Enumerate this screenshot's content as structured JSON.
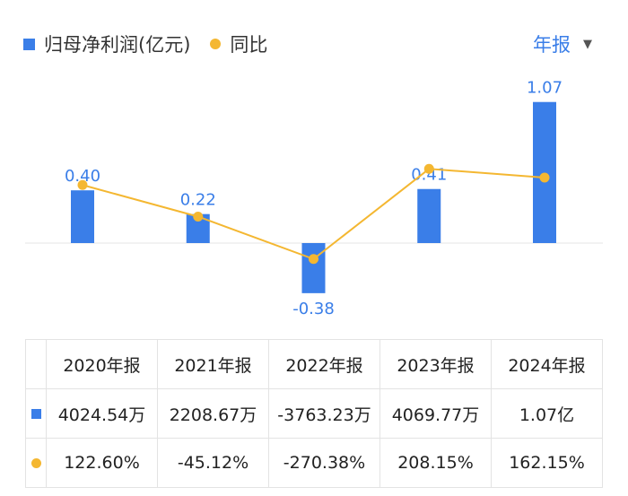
{
  "legend": {
    "bar_label": "归母净利润(亿元)",
    "line_label": "同比"
  },
  "period_selector": {
    "label": "年报",
    "caret": "▼"
  },
  "chart_data": {
    "type": "bar",
    "categories": [
      "2020年报",
      "2021年报",
      "2022年报",
      "2023年报",
      "2024年报"
    ],
    "series": [
      {
        "name": "归母净利润(亿元)",
        "type": "bar",
        "values": [
          0.4,
          0.22,
          -0.38,
          0.41,
          1.07
        ],
        "labels": [
          "0.40",
          "0.22",
          "-0.38",
          "0.41",
          "1.07"
        ],
        "color": "#3a7ee8"
      },
      {
        "name": "同比",
        "type": "line",
        "values": [
          122.6,
          -45.12,
          -270.38,
          208.15,
          162.15
        ],
        "color": "#f4b731"
      }
    ]
  },
  "table": {
    "headers": [
      "2020年报",
      "2021年报",
      "2022年报",
      "2023年报",
      "2024年报"
    ],
    "profit_row": [
      "4024.54万",
      "2208.67万",
      "-3763.23万",
      "4069.77万",
      "1.07亿"
    ],
    "yoy_row": [
      "122.60%",
      "-45.12%",
      "-270.38%",
      "208.15%",
      "162.15%"
    ]
  },
  "colors": {
    "bar": "#3a7ee8",
    "line": "#f4b731",
    "positive": "#e04848",
    "negative": "#1fa15a"
  }
}
